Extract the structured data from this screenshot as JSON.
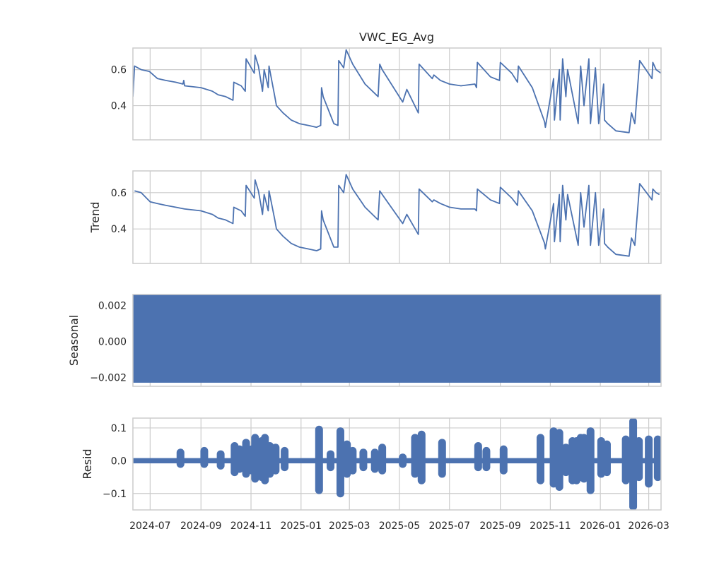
{
  "figure_title": "VWC_EG_Avg",
  "colors": {
    "series": "#4c72b0",
    "grid": "#cccccc",
    "frame": "#cccccc",
    "text": "#262626"
  },
  "chart_data": [
    {
      "type": "line",
      "title": "VWC_EG_Avg",
      "ylabel": "",
      "ylim": [
        0.21,
        0.72
      ],
      "yticks": [
        0.4,
        0.6
      ],
      "ytick_labels": [
        "0.4",
        "0.6"
      ],
      "xlim": [
        "2024-06-10",
        "2026-03-16"
      ],
      "grid": true,
      "series": [
        {
          "x": [
            "2024-06-10",
            "2024-06-12",
            "2024-06-20",
            "2024-06-30",
            "2024-07-10",
            "2024-07-20",
            "2024-08-01",
            "2024-08-10",
            "2024-08-11",
            "2024-08-12",
            "2024-09-01",
            "2024-09-15",
            "2024-09-22",
            "2024-10-01",
            "2024-10-10",
            "2024-10-11",
            "2024-10-20",
            "2024-10-25",
            "2024-10-26",
            "2024-11-05",
            "2024-11-06",
            "2024-11-10",
            "2024-11-15",
            "2024-11-17",
            "2024-11-22",
            "2024-11-23",
            "2024-11-30",
            "2024-12-02",
            "2024-12-10",
            "2024-12-20",
            "2024-12-30",
            "2025-01-10",
            "2025-01-20",
            "2025-01-25",
            "2025-01-26",
            "2025-01-28",
            "2025-02-10",
            "2025-02-15",
            "2025-02-16",
            "2025-02-22",
            "2025-02-25",
            "2025-03-05",
            "2025-03-20",
            "2025-04-05",
            "2025-04-07",
            "2025-04-10",
            "2025-05-05",
            "2025-05-10",
            "2025-05-24",
            "2025-05-25",
            "2025-06-10",
            "2025-06-12",
            "2025-06-20",
            "2025-07-01",
            "2025-07-15",
            "2025-08-01",
            "2025-08-03",
            "2025-08-04",
            "2025-08-20",
            "2025-08-31",
            "2025-09-01",
            "2025-09-15",
            "2025-09-22",
            "2025-09-23",
            "2025-10-10",
            "2025-10-25",
            "2025-10-26",
            "2025-11-05",
            "2025-11-06",
            "2025-11-12",
            "2025-11-13",
            "2025-11-16",
            "2025-11-20",
            "2025-11-22",
            "2025-12-05",
            "2025-12-08",
            "2025-12-12",
            "2025-12-18",
            "2025-12-20",
            "2025-12-26",
            "2025-12-30",
            "2026-01-05",
            "2026-01-06",
            "2026-01-10",
            "2026-01-20",
            "2026-02-05",
            "2026-02-08",
            "2026-02-12",
            "2026-02-18",
            "2026-03-05",
            "2026-03-06",
            "2026-03-10",
            "2026-03-16"
          ],
          "y": [
            0.45,
            0.62,
            0.6,
            0.59,
            0.55,
            0.54,
            0.53,
            0.52,
            0.54,
            0.51,
            0.5,
            0.48,
            0.46,
            0.45,
            0.43,
            0.53,
            0.51,
            0.48,
            0.66,
            0.58,
            0.68,
            0.62,
            0.48,
            0.6,
            0.5,
            0.62,
            0.45,
            0.4,
            0.36,
            0.32,
            0.3,
            0.29,
            0.28,
            0.29,
            0.5,
            0.45,
            0.3,
            0.29,
            0.65,
            0.61,
            0.71,
            0.63,
            0.52,
            0.45,
            0.63,
            0.6,
            0.42,
            0.49,
            0.36,
            0.63,
            0.55,
            0.57,
            0.54,
            0.52,
            0.51,
            0.52,
            0.5,
            0.64,
            0.56,
            0.54,
            0.64,
            0.58,
            0.53,
            0.62,
            0.5,
            0.31,
            0.28,
            0.55,
            0.32,
            0.6,
            0.32,
            0.66,
            0.45,
            0.6,
            0.3,
            0.62,
            0.4,
            0.66,
            0.3,
            0.61,
            0.3,
            0.52,
            0.32,
            0.3,
            0.26,
            0.25,
            0.36,
            0.3,
            0.65,
            0.55,
            0.64,
            0.6,
            0.58
          ],
          "color": "#4c72b0"
        }
      ]
    },
    {
      "type": "line",
      "ylabel": "Trend",
      "ylim": [
        0.21,
        0.72
      ],
      "yticks": [
        0.4,
        0.6
      ],
      "ytick_labels": [
        "0.4",
        "0.6"
      ],
      "xlim": [
        "2024-06-10",
        "2026-03-16"
      ],
      "grid": true,
      "series": [
        {
          "x": [
            "2024-06-12",
            "2024-06-20",
            "2024-07-01",
            "2024-07-10",
            "2024-07-20",
            "2024-08-01",
            "2024-08-12",
            "2024-09-01",
            "2024-09-15",
            "2024-09-22",
            "2024-10-01",
            "2024-10-10",
            "2024-10-11",
            "2024-10-20",
            "2024-10-25",
            "2024-10-26",
            "2024-11-05",
            "2024-11-06",
            "2024-11-10",
            "2024-11-15",
            "2024-11-17",
            "2024-11-22",
            "2024-11-23",
            "2024-11-30",
            "2024-12-02",
            "2024-12-10",
            "2024-12-20",
            "2024-12-30",
            "2025-01-10",
            "2025-01-20",
            "2025-01-25",
            "2025-01-26",
            "2025-01-28",
            "2025-02-10",
            "2025-02-15",
            "2025-02-16",
            "2025-02-22",
            "2025-02-25",
            "2025-03-05",
            "2025-03-20",
            "2025-04-05",
            "2025-04-07",
            "2025-04-10",
            "2025-05-05",
            "2025-05-10",
            "2025-05-24",
            "2025-05-25",
            "2025-06-10",
            "2025-06-12",
            "2025-06-20",
            "2025-07-01",
            "2025-07-15",
            "2025-08-01",
            "2025-08-03",
            "2025-08-04",
            "2025-08-20",
            "2025-08-31",
            "2025-09-01",
            "2025-09-15",
            "2025-09-22",
            "2025-09-23",
            "2025-10-10",
            "2025-10-25",
            "2025-10-26",
            "2025-11-05",
            "2025-11-06",
            "2025-11-12",
            "2025-11-13",
            "2025-11-16",
            "2025-11-20",
            "2025-11-22",
            "2025-12-05",
            "2025-12-08",
            "2025-12-12",
            "2025-12-18",
            "2025-12-20",
            "2025-12-26",
            "2025-12-30",
            "2026-01-05",
            "2026-01-06",
            "2026-01-10",
            "2026-01-20",
            "2026-02-05",
            "2026-02-08",
            "2026-02-12",
            "2026-02-18",
            "2026-03-05",
            "2026-03-06",
            "2026-03-10",
            "2026-03-14"
          ],
          "y": [
            0.61,
            0.6,
            0.55,
            0.54,
            0.53,
            0.52,
            0.51,
            0.5,
            0.48,
            0.46,
            0.45,
            0.43,
            0.52,
            0.5,
            0.47,
            0.64,
            0.57,
            0.67,
            0.61,
            0.48,
            0.59,
            0.5,
            0.61,
            0.45,
            0.4,
            0.36,
            0.32,
            0.3,
            0.29,
            0.28,
            0.29,
            0.5,
            0.45,
            0.3,
            0.3,
            0.64,
            0.6,
            0.7,
            0.62,
            0.52,
            0.45,
            0.61,
            0.59,
            0.43,
            0.48,
            0.37,
            0.62,
            0.55,
            0.56,
            0.54,
            0.52,
            0.51,
            0.51,
            0.5,
            0.62,
            0.56,
            0.54,
            0.63,
            0.57,
            0.53,
            0.61,
            0.5,
            0.32,
            0.29,
            0.54,
            0.33,
            0.59,
            0.33,
            0.64,
            0.45,
            0.59,
            0.31,
            0.6,
            0.41,
            0.64,
            0.31,
            0.6,
            0.31,
            0.51,
            0.32,
            0.3,
            0.26,
            0.25,
            0.35,
            0.31,
            0.65,
            0.56,
            0.62,
            0.6,
            0.59
          ],
          "color": "#4c72b0"
        }
      ]
    },
    {
      "type": "area",
      "ylabel": "Seasonal",
      "ylim": [
        -0.0025,
        0.0026
      ],
      "yticks": [
        -0.002,
        0.0,
        0.002
      ],
      "ytick_labels": [
        "−0.002",
        "0.000",
        "0.002"
      ],
      "xlim": [
        "2024-06-10",
        "2026-03-16"
      ],
      "grid": true,
      "series": [
        {
          "x": [
            "2024-06-10",
            "2026-03-16"
          ],
          "upper": 0.0026,
          "lower": -0.0023,
          "color": "#4c72b0"
        }
      ]
    },
    {
      "type": "scatter",
      "ylabel": "Resid",
      "ylim": [
        -0.15,
        0.13
      ],
      "yticks": [
        -0.1,
        0.0,
        0.1
      ],
      "ytick_labels": [
        "−0.1",
        "0.0",
        "0.1"
      ],
      "xlim": [
        "2024-06-10",
        "2026-03-16"
      ],
      "xticks": [
        "2024-07-01",
        "2024-09-01",
        "2024-11-01",
        "2025-01-01",
        "2025-03-01",
        "2025-05-01",
        "2025-07-01",
        "2025-09-01",
        "2025-11-01",
        "2026-01-01",
        "2026-03-01"
      ],
      "xtick_labels": [
        "2024-07",
        "2024-09",
        "2024-11",
        "2025-01",
        "2025-03",
        "2025-05",
        "2025-07",
        "2025-09",
        "2025-11",
        "2026-01",
        "2026-03"
      ],
      "grid": true,
      "baseline_band": [
        -0.008,
        0.008
      ],
      "series": [
        {
          "spikes": [
            [
              "2024-08-07",
              -0.01,
              0.025
            ],
            [
              "2024-09-05",
              -0.01,
              0.03
            ],
            [
              "2024-09-25",
              -0.015,
              0.02
            ],
            [
              "2024-10-12",
              -0.035,
              0.045
            ],
            [
              "2024-10-18",
              -0.025,
              0.035
            ],
            [
              "2024-10-26",
              -0.04,
              0.055
            ],
            [
              "2024-11-02",
              -0.03,
              0.035
            ],
            [
              "2024-11-06",
              -0.055,
              0.07
            ],
            [
              "2024-11-10",
              -0.04,
              0.05
            ],
            [
              "2024-11-14",
              -0.05,
              0.06
            ],
            [
              "2024-11-18",
              -0.06,
              0.07
            ],
            [
              "2024-11-24",
              -0.04,
              0.045
            ],
            [
              "2024-12-01",
              -0.03,
              0.04
            ],
            [
              "2024-12-12",
              -0.02,
              0.03
            ],
            [
              "2025-01-23",
              -0.09,
              0.095
            ],
            [
              "2025-02-06",
              -0.02,
              0.02
            ],
            [
              "2025-02-18",
              -0.1,
              0.09
            ],
            [
              "2025-02-26",
              -0.04,
              0.05
            ],
            [
              "2025-03-05",
              -0.03,
              0.03
            ],
            [
              "2025-03-18",
              -0.02,
              0.025
            ],
            [
              "2025-04-01",
              -0.025,
              0.025
            ],
            [
              "2025-04-10",
              -0.03,
              0.04
            ],
            [
              "2025-05-05",
              -0.01,
              0.01
            ],
            [
              "2025-05-20",
              -0.04,
              0.07
            ],
            [
              "2025-05-28",
              -0.06,
              0.08
            ],
            [
              "2025-06-22",
              -0.04,
              0.055
            ],
            [
              "2025-08-05",
              -0.02,
              0.045
            ],
            [
              "2025-08-15",
              -0.02,
              0.03
            ],
            [
              "2025-09-05",
              -0.03,
              0.035
            ],
            [
              "2025-10-20",
              -0.06,
              0.07
            ],
            [
              "2025-11-05",
              -0.07,
              0.09
            ],
            [
              "2025-11-12",
              -0.08,
              0.085
            ],
            [
              "2025-11-20",
              -0.035,
              0.04
            ],
            [
              "2025-11-28",
              -0.06,
              0.06
            ],
            [
              "2025-12-03",
              -0.06,
              0.06
            ],
            [
              "2025-12-08",
              -0.05,
              0.07
            ],
            [
              "2025-12-12",
              -0.055,
              0.07
            ],
            [
              "2025-12-16",
              -0.05,
              0.06
            ],
            [
              "2025-12-20",
              -0.09,
              0.09
            ],
            [
              "2026-01-02",
              -0.04,
              0.06
            ],
            [
              "2026-01-09",
              -0.035,
              0.05
            ],
            [
              "2026-02-01",
              -0.06,
              0.065
            ],
            [
              "2026-02-05",
              -0.04,
              0.05
            ],
            [
              "2026-02-10",
              -0.14,
              0.12
            ],
            [
              "2026-02-17",
              -0.05,
              0.06
            ],
            [
              "2026-03-01",
              -0.07,
              0.065
            ],
            [
              "2026-03-12",
              -0.05,
              0.065
            ]
          ],
          "color": "#4c72b0"
        }
      ]
    }
  ]
}
